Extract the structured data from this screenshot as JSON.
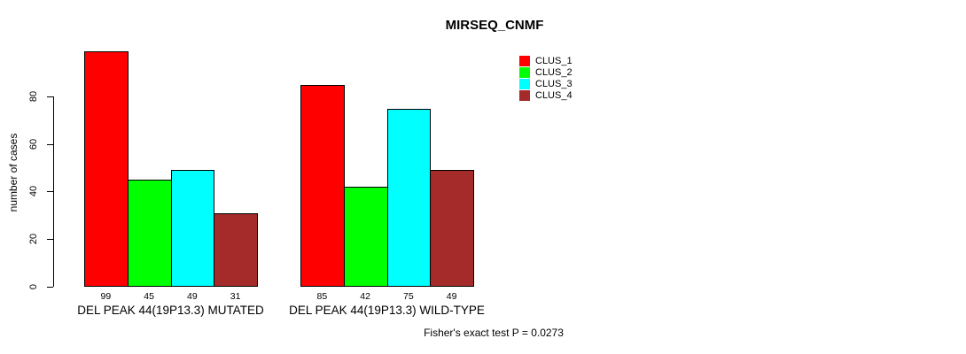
{
  "chart_data": {
    "type": "bar",
    "title": "MIRSEQ_CNMF",
    "ylabel": "number of cases",
    "xlabel": "",
    "categories": [
      "DEL PEAK 44(19P13.3) MUTATED",
      "DEL PEAK 44(19P13.3) WILD-TYPE"
    ],
    "series": [
      {
        "name": "CLUS_1",
        "color": "#ff0000",
        "values": [
          99,
          85
        ]
      },
      {
        "name": "CLUS_2",
        "color": "#00ff00",
        "values": [
          45,
          42
        ]
      },
      {
        "name": "CLUS_3",
        "color": "#00ffff",
        "values": [
          49,
          75
        ]
      },
      {
        "name": "CLUS_4",
        "color": "#a52a2a",
        "values": [
          31,
          49
        ]
      }
    ],
    "bar_value_labels": [
      [
        99,
        45,
        49,
        31
      ],
      [
        85,
        42,
        75,
        49
      ]
    ],
    "yticks": [
      0,
      20,
      40,
      60,
      80
    ],
    "ylim": [
      0,
      99
    ],
    "grid": false,
    "legend_position": "top-right",
    "legend_entries": [
      "CLUS_1",
      "CLUS_2",
      "CLUS_3",
      "CLUS_4"
    ],
    "annotation": "Fisher's exact test P = 0.0273"
  }
}
